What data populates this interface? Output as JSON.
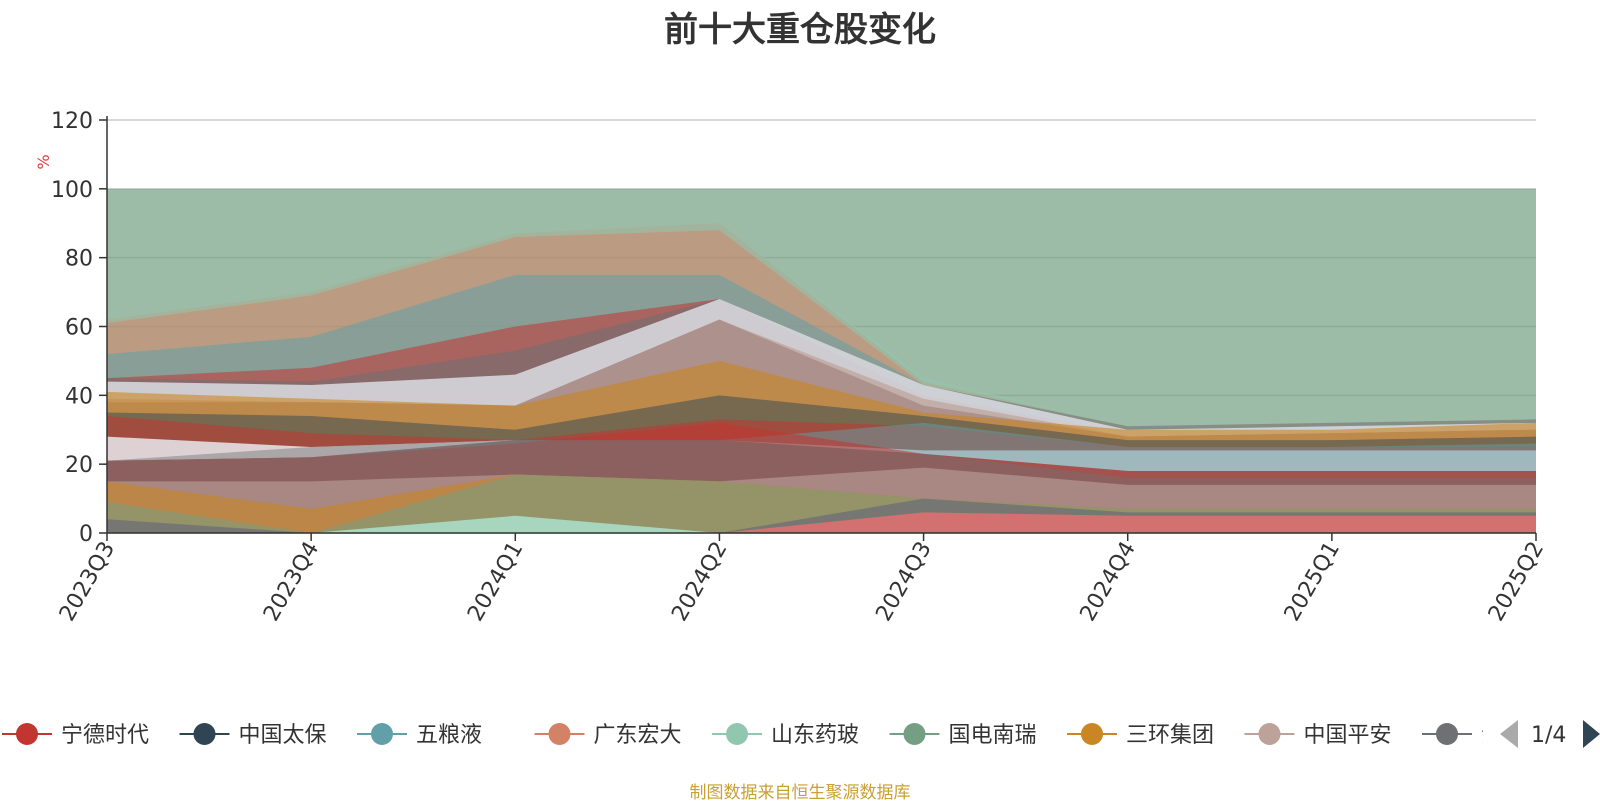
{
  "chart_data": {
    "type": "area",
    "title": "前十大重仓股变化",
    "ylabel": "%",
    "ylim": [
      0,
      120
    ],
    "yticks": [
      0,
      20,
      40,
      60,
      80,
      100,
      120
    ],
    "categories": [
      "2023Q3",
      "2023Q4",
      "2024Q1",
      "2024Q2",
      "2024Q3",
      "2024Q4",
      "2025Q1",
      "2025Q2"
    ],
    "legend": {
      "items": [
        {
          "name": "宁德时代",
          "color": "#c23531"
        },
        {
          "name": "中国太保",
          "color": "#2f4554"
        },
        {
          "name": "五粮液",
          "color": "#61a0a8"
        },
        {
          "name": "广东宏大",
          "color": "#d48265"
        },
        {
          "name": "山东药玻",
          "color": "#91c7ae"
        },
        {
          "name": "国电南瑞",
          "color": "#749f83"
        },
        {
          "name": "三环集团",
          "color": "#ca8622"
        },
        {
          "name": "中国平安",
          "color": "#bda29a"
        },
        {
          "name": "贵州茅台",
          "color": "#6e7074"
        }
      ],
      "page": "1/4"
    },
    "layers": [
      {
        "color": "#749f83",
        "opacity": 0.7,
        "top": [
          100,
          100,
          100,
          100,
          100,
          100,
          100,
          100
        ],
        "bottom": [
          0,
          0,
          0,
          0,
          0,
          0,
          0,
          0
        ]
      },
      {
        "color": "#d48265",
        "opacity": 0.55,
        "top": [
          62,
          70,
          87,
          90,
          44,
          31,
          32,
          33
        ],
        "bottom": [
          0,
          0,
          0,
          0,
          0,
          0,
          0,
          0
        ]
      },
      {
        "color": "#91c7ae",
        "opacity": 0.6,
        "top": [
          62,
          70,
          87,
          90,
          45,
          31,
          32,
          33
        ],
        "bottom": [
          61,
          69,
          86,
          88,
          43,
          30,
          31,
          32
        ]
      },
      {
        "color": "#61a0a8",
        "opacity": 0.55,
        "top": [
          52,
          57,
          75,
          75,
          43,
          30,
          31,
          32
        ],
        "bottom": [
          0,
          0,
          0,
          0,
          0,
          0,
          0,
          0
        ]
      },
      {
        "color": "#c23531",
        "opacity": 0.55,
        "top": [
          45,
          48,
          60,
          68,
          40,
          29,
          30,
          31
        ],
        "bottom": [
          0,
          0,
          0,
          0,
          0,
          0,
          0,
          0
        ]
      },
      {
        "color": "#6e7074",
        "opacity": 0.55,
        "top": [
          45,
          44,
          53,
          68,
          43,
          31,
          32,
          33
        ],
        "bottom": [
          0,
          0,
          0,
          0,
          0,
          0,
          0,
          0
        ]
      },
      {
        "color": "#dcdde3",
        "opacity": 0.85,
        "top": [
          44,
          43,
          46,
          68,
          43,
          30,
          31,
          32
        ],
        "bottom": [
          38,
          38,
          37,
          62,
          37,
          28,
          29,
          30
        ]
      },
      {
        "color": "#bda29a",
        "opacity": 0.7,
        "top": [
          39,
          38,
          37,
          62,
          39,
          28,
          29,
          30
        ],
        "bottom": [
          0,
          0,
          0,
          0,
          0,
          0,
          0,
          0
        ]
      },
      {
        "color": "#ca8622",
        "opacity": 0.6,
        "top": [
          41,
          39,
          37,
          50,
          35,
          30,
          30,
          32
        ],
        "bottom": [
          0,
          0,
          0,
          0,
          0,
          0,
          0,
          0
        ]
      },
      {
        "color": "#2f4554",
        "opacity": 0.5,
        "top": [
          35,
          34,
          30,
          40,
          34,
          27,
          27,
          28
        ],
        "bottom": [
          0,
          0,
          0,
          0,
          0,
          0,
          0,
          0
        ]
      },
      {
        "color": "#c23531",
        "opacity": 0.55,
        "top": [
          34,
          29,
          27,
          33,
          31,
          25,
          25,
          25
        ],
        "bottom": [
          0,
          0,
          0,
          0,
          0,
          0,
          0,
          0
        ]
      },
      {
        "color": "#e7e9ee",
        "opacity": 0.85,
        "top": [
          28,
          25,
          27,
          27,
          24,
          24,
          24,
          24
        ],
        "bottom": [
          21,
          22,
          27,
          27,
          23,
          18,
          18,
          18
        ]
      },
      {
        "color": "#61a0a8",
        "opacity": 0.5,
        "top": [
          21,
          22,
          27,
          27,
          32,
          25,
          25,
          26
        ],
        "bottom": [
          0,
          0,
          0,
          0,
          0,
          0,
          0,
          0
        ]
      },
      {
        "color": "#c23531",
        "opacity": 0.55,
        "top": [
          21,
          22,
          26,
          32,
          23,
          18,
          18,
          18
        ],
        "bottom": [
          0,
          0,
          0,
          0,
          0,
          0,
          0,
          0
        ]
      },
      {
        "color": "#6e7074",
        "opacity": 0.45,
        "top": [
          21,
          25,
          27,
          27,
          23,
          16,
          16,
          16
        ],
        "bottom": [
          0,
          0,
          0,
          0,
          0,
          0,
          0,
          0
        ]
      },
      {
        "color": "#bda29a",
        "opacity": 0.6,
        "top": [
          15,
          15,
          17,
          15,
          19,
          14,
          14,
          14
        ],
        "bottom": [
          0,
          0,
          0,
          0,
          0,
          0,
          0,
          0
        ]
      },
      {
        "color": "#ca8622",
        "opacity": 0.6,
        "top": [
          15,
          7,
          17,
          15,
          10,
          7,
          7,
          7
        ],
        "bottom": [
          0,
          0,
          0,
          0,
          0,
          0,
          0,
          0
        ]
      },
      {
        "color": "#749f83",
        "opacity": 0.55,
        "top": [
          9,
          0,
          17,
          15,
          10,
          7,
          7,
          7
        ],
        "bottom": [
          0,
          0,
          0,
          0,
          0,
          0,
          0,
          0
        ]
      },
      {
        "color": "#a9ddc8",
        "opacity": 0.9,
        "top": [
          0,
          0,
          5,
          0,
          0,
          0,
          0,
          0
        ],
        "bottom": [
          0,
          0,
          0,
          0,
          0,
          0,
          0,
          0
        ]
      },
      {
        "color": "#6e7074",
        "opacity": 0.8,
        "top": [
          4,
          0,
          0,
          0,
          10,
          6,
          6,
          6
        ],
        "bottom": [
          0,
          0,
          0,
          0,
          0,
          0,
          0,
          0
        ]
      },
      {
        "color": "#d87070",
        "opacity": 0.95,
        "top": [
          0,
          0,
          0,
          0,
          6,
          5,
          5,
          5
        ],
        "bottom": [
          0,
          0,
          0,
          0,
          0,
          0,
          0,
          0
        ]
      }
    ]
  },
  "footer": "制图数据来自恒生聚源数据库"
}
